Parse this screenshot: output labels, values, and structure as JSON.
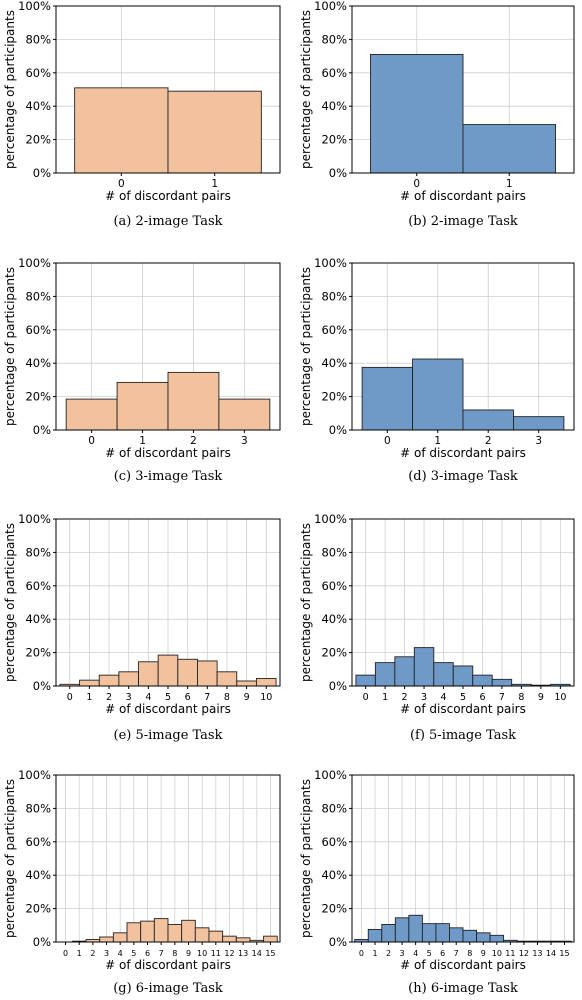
{
  "colors": {
    "orange": "#f2c29f",
    "blue": "#6f9ac8",
    "edge": "#222222",
    "grid": "#cfcfcf"
  },
  "chart_data": [
    {
      "type": "bar",
      "id": "a",
      "caption": "(a) 2-image Task",
      "color": "orange",
      "xlabel": "# of discordant pairs",
      "ylabel": "percentage of participants",
      "ylim": [
        0,
        100
      ],
      "yticks": [
        "0%",
        "20%",
        "40%",
        "60%",
        "80%",
        "100%"
      ],
      "categories": [
        "0",
        "1"
      ],
      "values": [
        51,
        49
      ],
      "grid": true
    },
    {
      "type": "bar",
      "id": "b",
      "caption": "(b) 2-image Task",
      "color": "blue",
      "xlabel": "# of discordant pairs",
      "ylabel": "percentage of participants",
      "ylim": [
        0,
        100
      ],
      "yticks": [
        "0%",
        "20%",
        "40%",
        "60%",
        "80%",
        "100%"
      ],
      "categories": [
        "0",
        "1"
      ],
      "values": [
        71,
        29
      ],
      "grid": true
    },
    {
      "type": "bar",
      "id": "c",
      "caption": "(c) 3-image Task",
      "color": "orange",
      "xlabel": "# of discordant pairs",
      "ylabel": "percentage of participants",
      "ylim": [
        0,
        100
      ],
      "yticks": [
        "0%",
        "20%",
        "40%",
        "60%",
        "80%",
        "100%"
      ],
      "categories": [
        "0",
        "1",
        "2",
        "3"
      ],
      "values": [
        18.5,
        28.5,
        34.5,
        18.5
      ],
      "grid": true
    },
    {
      "type": "bar",
      "id": "d",
      "caption": "(d) 3-image Task",
      "color": "blue",
      "xlabel": "# of discordant pairs",
      "ylabel": "percentage of participants",
      "ylim": [
        0,
        100
      ],
      "yticks": [
        "0%",
        "20%",
        "40%",
        "60%",
        "80%",
        "100%"
      ],
      "categories": [
        "0",
        "1",
        "2",
        "3"
      ],
      "values": [
        37.5,
        42.5,
        12,
        8
      ],
      "grid": true
    },
    {
      "type": "bar",
      "id": "e",
      "caption": "(e) 5-image Task",
      "color": "orange",
      "xlabel": "# of discordant pairs",
      "ylabel": "percentage of participants",
      "ylim": [
        0,
        100
      ],
      "yticks": [
        "0%",
        "20%",
        "40%",
        "60%",
        "80%",
        "100%"
      ],
      "categories": [
        "0",
        "1",
        "2",
        "3",
        "4",
        "5",
        "6",
        "7",
        "8",
        "9",
        "10"
      ],
      "values": [
        1,
        3.5,
        6.5,
        8.5,
        14.5,
        18.5,
        16,
        15,
        8.5,
        3,
        4.5
      ],
      "grid": true
    },
    {
      "type": "bar",
      "id": "f",
      "caption": "(f) 5-image Task",
      "color": "blue",
      "xlabel": "# of discordant pairs",
      "ylabel": "percentage of participants",
      "ylim": [
        0,
        100
      ],
      "yticks": [
        "0%",
        "20%",
        "40%",
        "60%",
        "80%",
        "100%"
      ],
      "categories": [
        "0",
        "1",
        "2",
        "3",
        "4",
        "5",
        "6",
        "7",
        "8",
        "9",
        "10"
      ],
      "values": [
        6.5,
        14,
        17.5,
        23,
        14,
        12,
        6.5,
        4,
        1,
        0.5,
        1
      ],
      "grid": true
    },
    {
      "type": "bar",
      "id": "g",
      "caption": "(g) 6-image Task",
      "color": "orange",
      "xlabel": "# of discordant pairs",
      "ylabel": "percentage of participants",
      "ylim": [
        0,
        100
      ],
      "yticks": [
        "0%",
        "20%",
        "40%",
        "60%",
        "80%",
        "100%"
      ],
      "categories": [
        "0",
        "1",
        "2",
        "3",
        "4",
        "5",
        "6",
        "7",
        "8",
        "9",
        "10",
        "11",
        "12",
        "13",
        "14",
        "15"
      ],
      "values": [
        0,
        0.5,
        1.5,
        3,
        5.5,
        11.5,
        12.5,
        14,
        10.5,
        13,
        8.5,
        6.5,
        3.5,
        2.5,
        1,
        3.5
      ],
      "grid": true
    },
    {
      "type": "bar",
      "id": "h",
      "caption": "(h) 6-image Task",
      "color": "blue",
      "xlabel": "# of discordant pairs",
      "ylabel": "percentage of participants",
      "ylim": [
        0,
        100
      ],
      "yticks": [
        "0%",
        "20%",
        "40%",
        "60%",
        "80%",
        "100%"
      ],
      "categories": [
        "0",
        "1",
        "2",
        "3",
        "4",
        "5",
        "6",
        "7",
        "8",
        "9",
        "10",
        "11",
        "12",
        "13",
        "14",
        "15"
      ],
      "values": [
        1.5,
        7.5,
        10.5,
        14.5,
        16,
        11,
        11,
        8.5,
        7,
        5.5,
        4,
        1,
        0.5,
        0.5,
        0.5,
        0.5
      ],
      "grid": true
    }
  ]
}
